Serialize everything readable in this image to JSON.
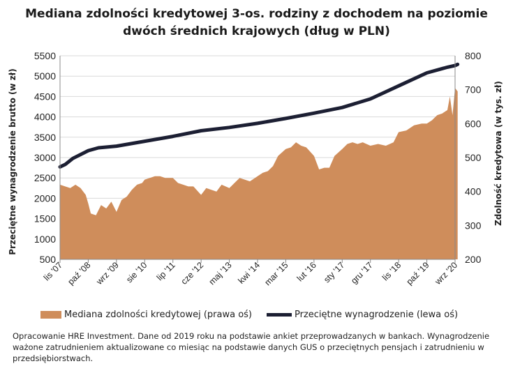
{
  "title_line1": "Mediana zdolności kredytowej 3-os. rodziny z dochodem na poziomie",
  "title_line2": "dwóch średnich krajowych (dług w PLN)",
  "note": "Opracowanie HRE Investment. Dane od 2019 roku na podstawie ankiet przeprowadzanych w bankach. Wynagrodzenie ważone zatrudnieniem aktualizowane co miesiąc na podstawie danych GUS o przeciętnych pensjach i zatrudnieniu w przedsiębiorstwach.",
  "colors": {
    "area": "#cf8d5b",
    "line": "#1c1f33"
  },
  "chart_data": {
    "type": "area",
    "ylabel": "Przeciętne wynagrodzenie brutto (w zł)",
    "y2label": "Zdolność kredytowa (w tys. zł)",
    "ylim": [
      500,
      5500
    ],
    "y2lim": [
      200,
      800
    ],
    "yticks": [
      "500",
      "1000",
      "1500",
      "2000",
      "2500",
      "3000",
      "3500",
      "4000",
      "4500",
      "5000",
      "5500"
    ],
    "y2ticks": [
      "200",
      "300",
      "400",
      "500",
      "600",
      "700",
      "800"
    ],
    "xticks": [
      "lis '07",
      "paź '08",
      "wrz '09",
      "sie '10",
      "lip '11",
      "cze '12",
      "maj '13",
      "kwi '14",
      "mar '15",
      "lut '16",
      "sty '17",
      "gru '17",
      "lis '18",
      "paź '19",
      "wrz '20"
    ],
    "grid": true,
    "legend": "bottom",
    "series": [
      {
        "name": "Mediana zdolności kredytowej (prawa oś)",
        "axis": "right",
        "type": "area",
        "x": [
          "lis '07",
          "sty '08",
          "mar '08",
          "maj '08",
          "lip '08",
          "wrz '08",
          "paź '08",
          "lis '08",
          "sty '09",
          "mar '09",
          "maj '09",
          "lip '09",
          "wrz '09",
          "lis '09",
          "sty '10",
          "mar '10",
          "maj '10",
          "lip '10",
          "sie '10",
          "paź '10",
          "gru '10",
          "lut '11",
          "kwi '11",
          "lip '11",
          "wrz '11",
          "lis '11",
          "sty '12",
          "mar '12",
          "cze '12",
          "sie '12",
          "paź '12",
          "gru '12",
          "lut '13",
          "maj '13",
          "lip '13",
          "wrz '13",
          "lis '13",
          "sty '14",
          "kwi '14",
          "cze '14",
          "sie '14",
          "paź '14",
          "gru '14",
          "mar '15",
          "maj '15",
          "lip '15",
          "wrz '15",
          "lis '15",
          "lut '16",
          "kwi '16",
          "cze '16",
          "sie '16",
          "paź '16",
          "sty '17",
          "mar '17",
          "maj '17",
          "lip '17",
          "wrz '17",
          "gru '17",
          "mar '18",
          "cze '18",
          "wrz '18",
          "lis '18",
          "lut '19",
          "maj '19",
          "sie '19",
          "paź '19",
          "gru '19",
          "lut '20",
          "kwi '20",
          "cze '20",
          "lip '20",
          "sie '20",
          "wrz '20",
          "paź '20"
        ],
        "values": [
          420,
          415,
          410,
          420,
          410,
          390,
          365,
          335,
          330,
          360,
          350,
          370,
          340,
          375,
          385,
          405,
          420,
          425,
          435,
          440,
          445,
          445,
          440,
          440,
          425,
          420,
          415,
          415,
          390,
          410,
          405,
          400,
          420,
          410,
          425,
          440,
          435,
          430,
          445,
          455,
          460,
          475,
          505,
          525,
          530,
          545,
          535,
          530,
          505,
          465,
          470,
          470,
          505,
          525,
          540,
          545,
          540,
          545,
          535,
          540,
          535,
          545,
          575,
          580,
          595,
          600,
          600,
          610,
          625,
          630,
          640,
          680,
          625,
          705,
          695
        ]
      },
      {
        "name": "Przeciętne wynagrodzenie (lewa oś)",
        "axis": "left",
        "type": "line",
        "x": [
          "lis '07",
          "sty '08",
          "kwi '08",
          "paź '08",
          "lut '09",
          "wrz '09",
          "sie '10",
          "lip '11",
          "cze '12",
          "maj '13",
          "kwi '14",
          "mar '15",
          "lut '16",
          "sty '17",
          "gru '17",
          "lis '18",
          "paź '19",
          "cze '20",
          "wrz '20",
          "paź '20"
        ],
        "values": [
          2770,
          2830,
          2980,
          3170,
          3240,
          3280,
          3400,
          3520,
          3660,
          3740,
          3840,
          3960,
          4090,
          4230,
          4440,
          4760,
          5080,
          5220,
          5260,
          5290
        ]
      }
    ]
  }
}
